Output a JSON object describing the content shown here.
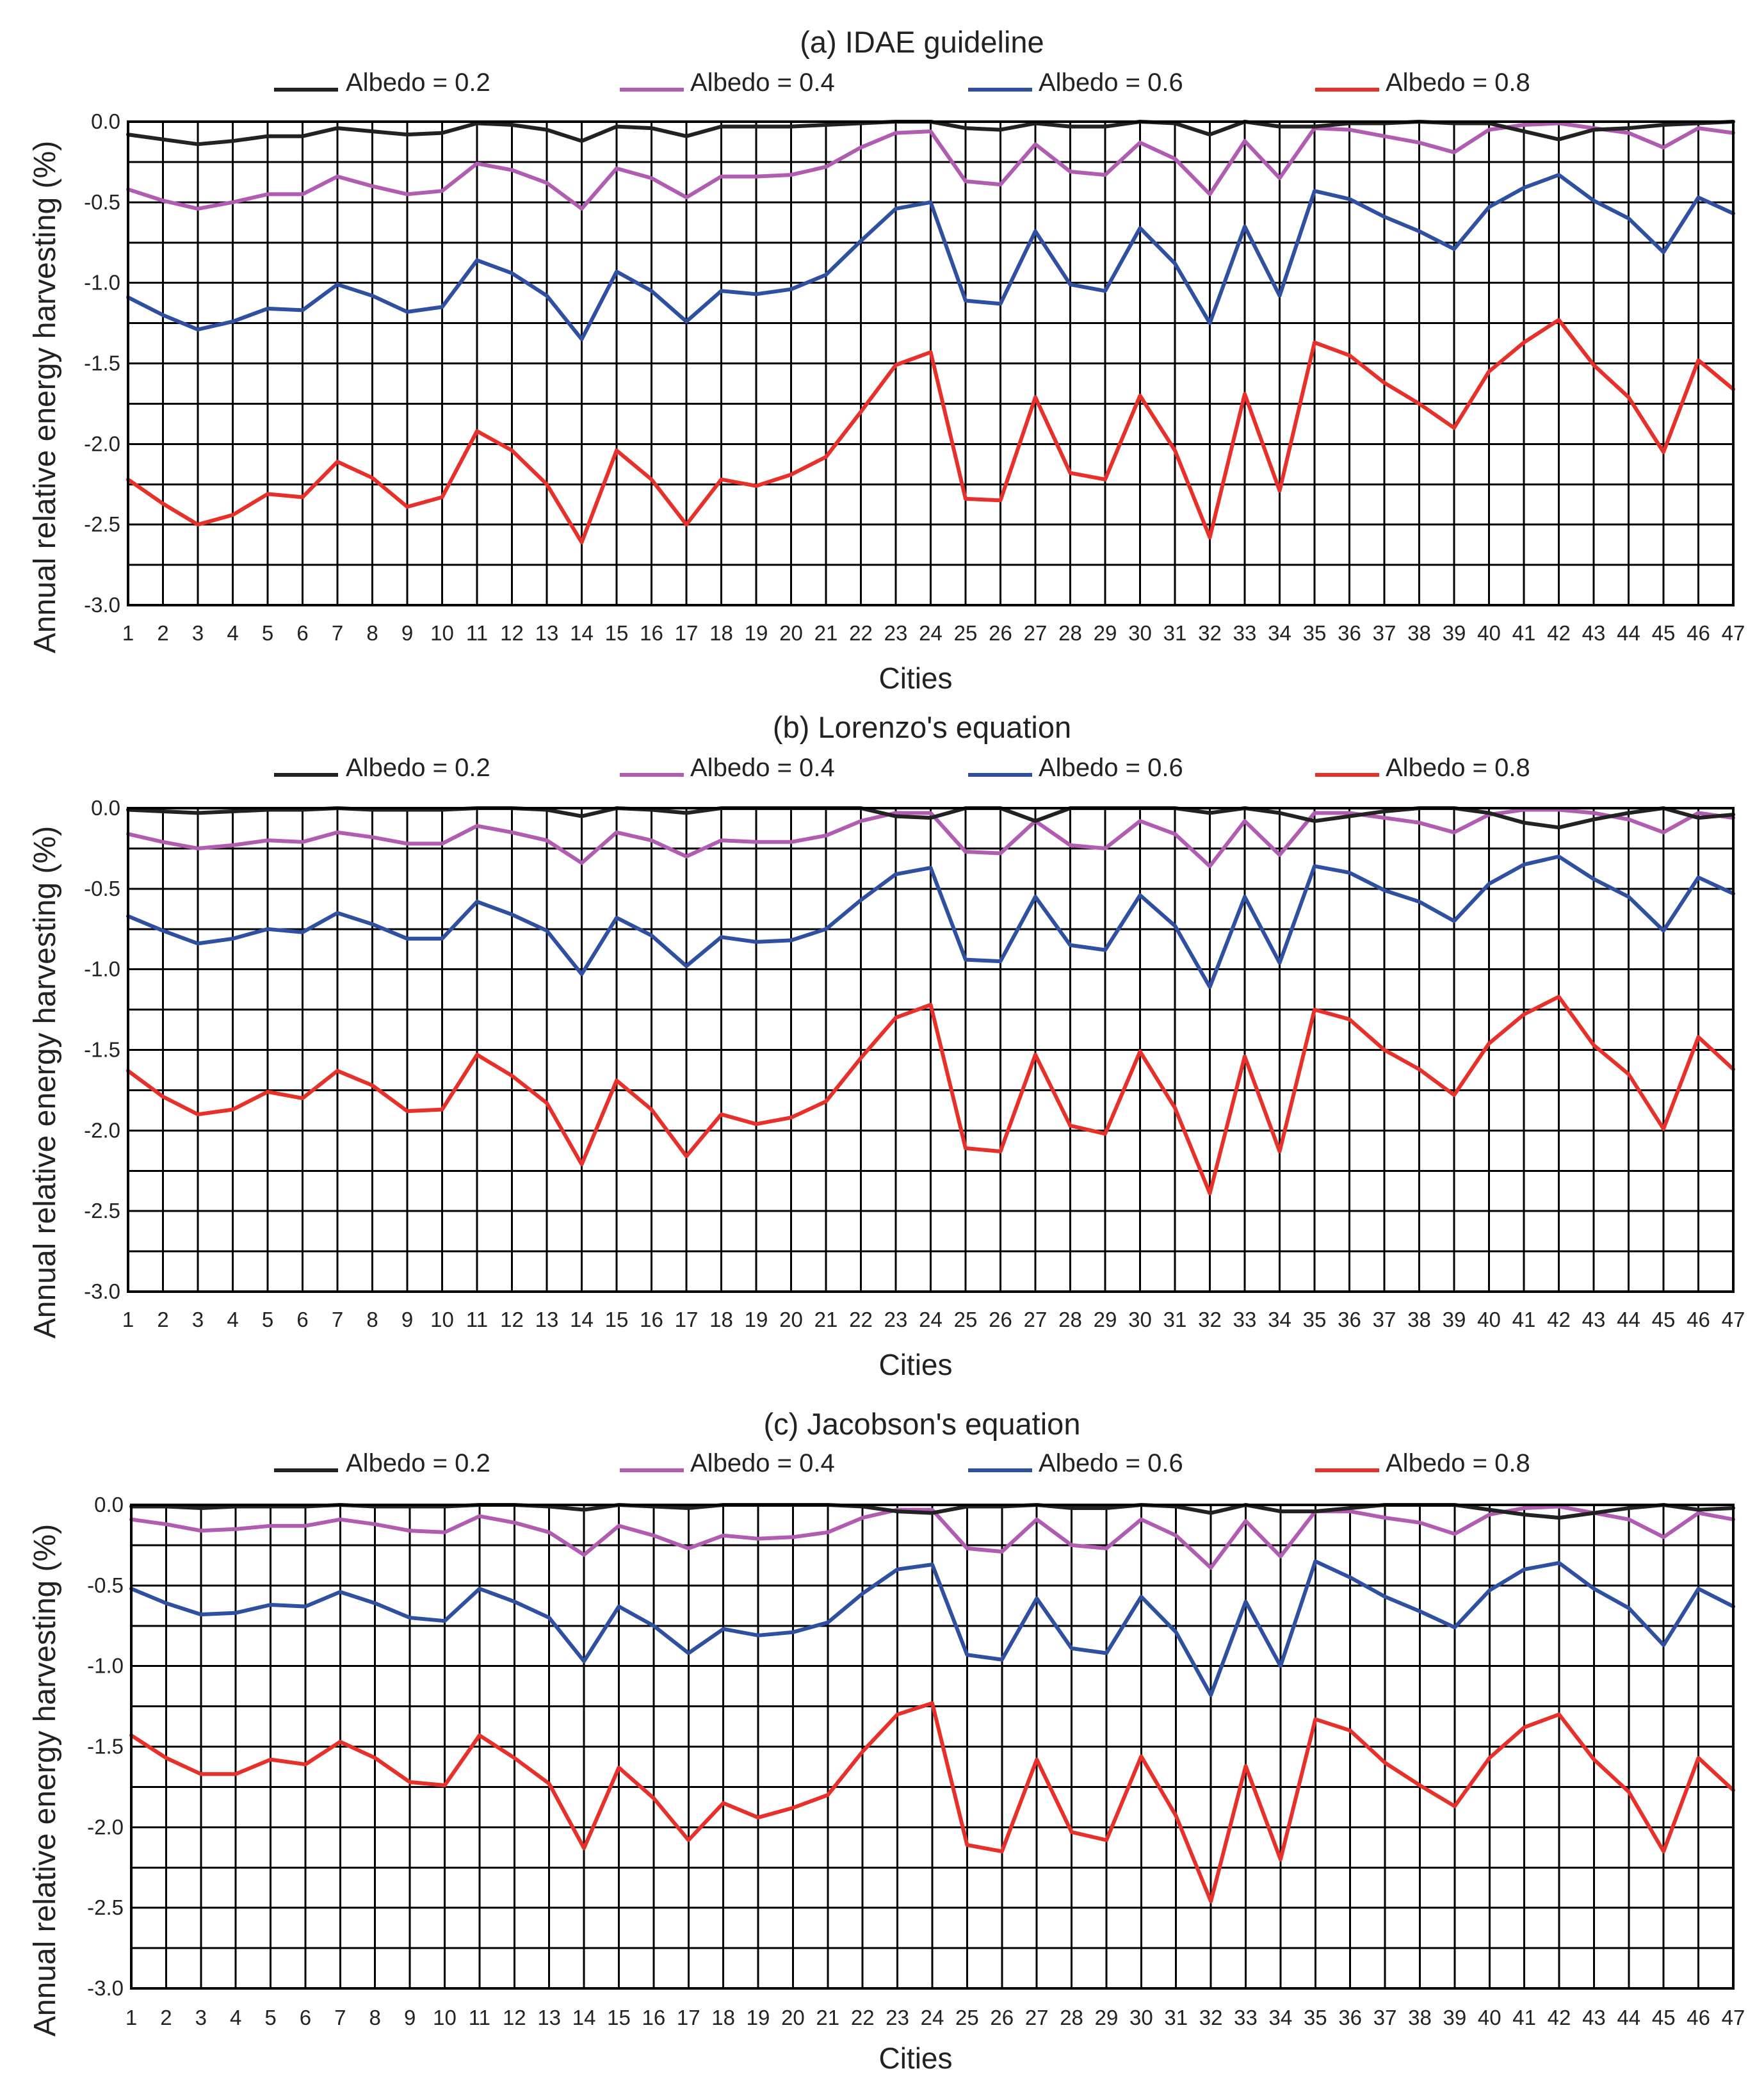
{
  "figure": {
    "ylabel": "Annual relative energy harvesting (%)",
    "xlabel": "Cities",
    "legend_labels": [
      "Albedo = 0.2",
      "Albedo = 0.4",
      "Albedo = 0.6",
      "Albedo = 0.8"
    ],
    "series_colors": [
      "#222222",
      "#b05cb0",
      "#2f4fa0",
      "#e8302a"
    ],
    "y_ticks": [
      "0.0",
      "-0.5",
      "-1.0",
      "-1.5",
      "-2.0",
      "-2.5",
      "-3.0"
    ],
    "x_ticks": [
      "1",
      "2",
      "3",
      "4",
      "5",
      "6",
      "7",
      "8",
      "9",
      "10",
      "11",
      "12",
      "13",
      "14",
      "15",
      "16",
      "17",
      "18",
      "19",
      "20",
      "21",
      "22",
      "23",
      "24",
      "25",
      "26",
      "27",
      "28",
      "29",
      "30",
      "31",
      "32",
      "33",
      "34",
      "35",
      "36",
      "37",
      "38",
      "39",
      "40",
      "41",
      "42",
      "43",
      "44",
      "45",
      "46",
      "47"
    ]
  },
  "chart_data": [
    {
      "type": "line",
      "title": "(a) IDAE guideline",
      "xlabel": "Cities",
      "ylabel": "Annual relative energy harvesting (%)",
      "ylim": [
        -3.0,
        0.0
      ],
      "x": [
        1,
        2,
        3,
        4,
        5,
        6,
        7,
        8,
        9,
        10,
        11,
        12,
        13,
        14,
        15,
        16,
        17,
        18,
        19,
        20,
        21,
        22,
        23,
        24,
        25,
        26,
        27,
        28,
        29,
        30,
        31,
        32,
        33,
        34,
        35,
        36,
        37,
        38,
        39,
        40,
        41,
        42,
        43,
        44,
        45,
        46,
        47
      ],
      "series": [
        {
          "name": "Albedo = 0.2",
          "values": [
            -0.08,
            -0.11,
            -0.14,
            -0.12,
            -0.09,
            -0.09,
            -0.04,
            -0.06,
            -0.08,
            -0.07,
            -0.01,
            -0.02,
            -0.05,
            -0.12,
            -0.03,
            -0.04,
            -0.09,
            -0.03,
            -0.03,
            -0.03,
            -0.02,
            -0.01,
            0.0,
            0.0,
            -0.04,
            -0.05,
            -0.01,
            -0.03,
            -0.03,
            0.0,
            -0.01,
            -0.08,
            0.0,
            -0.03,
            -0.03,
            -0.01,
            -0.01,
            0.0,
            -0.01,
            -0.01,
            -0.06,
            -0.11,
            -0.05,
            -0.04,
            -0.02,
            -0.01,
            0.0
          ]
        },
        {
          "name": "Albedo = 0.4",
          "values": [
            -0.42,
            -0.49,
            -0.54,
            -0.5,
            -0.45,
            -0.45,
            -0.34,
            -0.4,
            -0.45,
            -0.43,
            -0.26,
            -0.3,
            -0.38,
            -0.54,
            -0.29,
            -0.35,
            -0.47,
            -0.34,
            -0.34,
            -0.33,
            -0.28,
            -0.16,
            -0.07,
            -0.06,
            -0.37,
            -0.39,
            -0.14,
            -0.31,
            -0.33,
            -0.13,
            -0.23,
            -0.45,
            -0.12,
            -0.35,
            -0.04,
            -0.05,
            -0.09,
            -0.13,
            -0.19,
            -0.05,
            -0.02,
            -0.01,
            -0.04,
            -0.07,
            -0.16,
            -0.04,
            -0.07
          ]
        },
        {
          "name": "Albedo = 0.6",
          "values": [
            -1.09,
            -1.2,
            -1.29,
            -1.24,
            -1.16,
            -1.17,
            -1.01,
            -1.08,
            -1.18,
            -1.15,
            -0.86,
            -0.94,
            -1.08,
            -1.35,
            -0.93,
            -1.05,
            -1.24,
            -1.05,
            -1.07,
            -1.04,
            -0.95,
            -0.74,
            -0.54,
            -0.5,
            -1.11,
            -1.13,
            -0.68,
            -1.01,
            -1.05,
            -0.66,
            -0.88,
            -1.25,
            -0.65,
            -1.08,
            -0.43,
            -0.48,
            -0.59,
            -0.68,
            -0.79,
            -0.53,
            -0.41,
            -0.33,
            -0.49,
            -0.6,
            -0.81,
            -0.47,
            -0.57
          ]
        },
        {
          "name": "Albedo = 0.8",
          "values": [
            -2.22,
            -2.37,
            -2.5,
            -2.44,
            -2.31,
            -2.33,
            -2.11,
            -2.21,
            -2.39,
            -2.33,
            -1.92,
            -2.04,
            -2.25,
            -2.61,
            -2.04,
            -2.22,
            -2.5,
            -2.22,
            -2.26,
            -2.19,
            -2.08,
            -1.8,
            -1.51,
            -1.43,
            -2.34,
            -2.35,
            -1.71,
            -2.18,
            -2.22,
            -1.7,
            -2.04,
            -2.58,
            -1.69,
            -2.29,
            -1.37,
            -1.45,
            -1.62,
            -1.75,
            -1.9,
            -1.55,
            -1.37,
            -1.23,
            -1.51,
            -1.71,
            -2.05,
            -1.48,
            -1.66
          ]
        }
      ]
    },
    {
      "type": "line",
      "title": "(b) Lorenzo's equation",
      "xlabel": "Cities",
      "ylabel": "Annual relative energy harvesting (%)",
      "ylim": [
        -3.0,
        0.0
      ],
      "x": [
        1,
        2,
        3,
        4,
        5,
        6,
        7,
        8,
        9,
        10,
        11,
        12,
        13,
        14,
        15,
        16,
        17,
        18,
        19,
        20,
        21,
        22,
        23,
        24,
        25,
        26,
        27,
        28,
        29,
        30,
        31,
        32,
        33,
        34,
        35,
        36,
        37,
        38,
        39,
        40,
        41,
        42,
        43,
        44,
        45,
        46,
        47
      ],
      "series": [
        {
          "name": "Albedo = 0.2",
          "values": [
            -0.01,
            -0.02,
            -0.03,
            -0.02,
            -0.01,
            -0.01,
            0.0,
            -0.01,
            -0.01,
            -0.01,
            0.0,
            0.0,
            -0.01,
            -0.05,
            0.0,
            -0.01,
            -0.03,
            0.0,
            0.0,
            0.0,
            0.0,
            0.0,
            -0.05,
            -0.06,
            0.0,
            0.0,
            -0.08,
            0.0,
            0.0,
            0.0,
            0.0,
            -0.03,
            0.0,
            -0.03,
            -0.08,
            -0.05,
            -0.02,
            0.0,
            0.0,
            -0.03,
            -0.09,
            -0.12,
            -0.07,
            -0.03,
            0.0,
            -0.06,
            -0.04
          ]
        },
        {
          "name": "Albedo = 0.4",
          "values": [
            -0.16,
            -0.21,
            -0.25,
            -0.23,
            -0.2,
            -0.21,
            -0.15,
            -0.18,
            -0.22,
            -0.22,
            -0.11,
            -0.15,
            -0.2,
            -0.34,
            -0.15,
            -0.2,
            -0.3,
            -0.2,
            -0.21,
            -0.21,
            -0.17,
            -0.08,
            -0.03,
            -0.03,
            -0.27,
            -0.28,
            -0.08,
            -0.23,
            -0.25,
            -0.08,
            -0.16,
            -0.36,
            -0.08,
            -0.29,
            -0.03,
            -0.03,
            -0.06,
            -0.09,
            -0.15,
            -0.04,
            -0.01,
            -0.01,
            -0.03,
            -0.07,
            -0.15,
            -0.03,
            -0.06
          ]
        },
        {
          "name": "Albedo = 0.6",
          "values": [
            -0.67,
            -0.76,
            -0.84,
            -0.81,
            -0.75,
            -0.77,
            -0.65,
            -0.72,
            -0.81,
            -0.81,
            -0.58,
            -0.66,
            -0.76,
            -1.03,
            -0.68,
            -0.79,
            -0.98,
            -0.8,
            -0.83,
            -0.82,
            -0.75,
            -0.57,
            -0.41,
            -0.37,
            -0.94,
            -0.95,
            -0.55,
            -0.85,
            -0.88,
            -0.54,
            -0.73,
            -1.11,
            -0.55,
            -0.96,
            -0.36,
            -0.4,
            -0.51,
            -0.58,
            -0.7,
            -0.47,
            -0.35,
            -0.3,
            -0.44,
            -0.55,
            -0.76,
            -0.43,
            -0.53
          ]
        },
        {
          "name": "Albedo = 0.8",
          "values": [
            -1.63,
            -1.79,
            -1.9,
            -1.87,
            -1.76,
            -1.8,
            -1.63,
            -1.72,
            -1.88,
            -1.87,
            -1.53,
            -1.66,
            -1.83,
            -2.21,
            -1.69,
            -1.87,
            -2.16,
            -1.9,
            -1.96,
            -1.92,
            -1.82,
            -1.55,
            -1.3,
            -1.22,
            -2.11,
            -2.13,
            -1.53,
            -1.97,
            -2.02,
            -1.51,
            -1.86,
            -2.39,
            -1.54,
            -2.13,
            -1.25,
            -1.31,
            -1.5,
            -1.62,
            -1.78,
            -1.46,
            -1.28,
            -1.17,
            -1.47,
            -1.65,
            -1.99,
            -1.42,
            -1.62
          ]
        }
      ]
    },
    {
      "type": "line",
      "title": "(c) Jacobson's equation",
      "xlabel": "Cities",
      "ylabel": "Annual relative energy harvesting (%)",
      "ylim": [
        -3.0,
        0.0
      ],
      "x": [
        1,
        2,
        3,
        4,
        5,
        6,
        7,
        8,
        9,
        10,
        11,
        12,
        13,
        14,
        15,
        16,
        17,
        18,
        19,
        20,
        21,
        22,
        23,
        24,
        25,
        26,
        27,
        28,
        29,
        30,
        31,
        32,
        33,
        34,
        35,
        36,
        37,
        38,
        39,
        40,
        41,
        42,
        43,
        44,
        45,
        46,
        47
      ],
      "series": [
        {
          "name": "Albedo = 0.2",
          "values": [
            -0.01,
            -0.01,
            -0.02,
            -0.01,
            -0.01,
            -0.01,
            0.0,
            -0.01,
            -0.01,
            -0.01,
            0.0,
            0.0,
            -0.01,
            -0.03,
            0.0,
            -0.01,
            -0.02,
            0.0,
            0.0,
            0.0,
            0.0,
            -0.01,
            -0.04,
            -0.05,
            -0.01,
            -0.01,
            0.0,
            -0.02,
            -0.02,
            0.0,
            -0.01,
            -0.05,
            0.0,
            -0.04,
            -0.04,
            -0.02,
            0.0,
            0.0,
            0.0,
            -0.03,
            -0.06,
            -0.08,
            -0.05,
            -0.02,
            0.0,
            -0.03,
            -0.02
          ]
        },
        {
          "name": "Albedo = 0.4",
          "values": [
            -0.09,
            -0.12,
            -0.16,
            -0.15,
            -0.13,
            -0.13,
            -0.09,
            -0.12,
            -0.16,
            -0.17,
            -0.07,
            -0.11,
            -0.17,
            -0.31,
            -0.13,
            -0.19,
            -0.27,
            -0.19,
            -0.21,
            -0.2,
            -0.17,
            -0.08,
            -0.03,
            -0.03,
            -0.27,
            -0.29,
            -0.09,
            -0.25,
            -0.27,
            -0.09,
            -0.19,
            -0.39,
            -0.1,
            -0.32,
            -0.04,
            -0.04,
            -0.08,
            -0.11,
            -0.18,
            -0.06,
            -0.02,
            -0.01,
            -0.05,
            -0.09,
            -0.2,
            -0.05,
            -0.09
          ]
        },
        {
          "name": "Albedo = 0.6",
          "values": [
            -0.52,
            -0.61,
            -0.68,
            -0.67,
            -0.62,
            -0.63,
            -0.54,
            -0.61,
            -0.7,
            -0.72,
            -0.52,
            -0.6,
            -0.7,
            -0.97,
            -0.63,
            -0.75,
            -0.92,
            -0.77,
            -0.81,
            -0.79,
            -0.73,
            -0.55,
            -0.4,
            -0.37,
            -0.93,
            -0.96,
            -0.58,
            -0.89,
            -0.92,
            -0.57,
            -0.79,
            -1.18,
            -0.6,
            -1.0,
            -0.35,
            -0.45,
            -0.57,
            -0.66,
            -0.76,
            -0.53,
            -0.4,
            -0.36,
            -0.52,
            -0.64,
            -0.87,
            -0.52,
            -0.63
          ]
        },
        {
          "name": "Albedo = 0.8",
          "values": [
            -1.43,
            -1.57,
            -1.67,
            -1.67,
            -1.58,
            -1.61,
            -1.47,
            -1.57,
            -1.72,
            -1.74,
            -1.43,
            -1.57,
            -1.73,
            -2.13,
            -1.63,
            -1.82,
            -2.08,
            -1.85,
            -1.94,
            -1.88,
            -1.8,
            -1.53,
            -1.3,
            -1.23,
            -2.11,
            -2.15,
            -1.58,
            -2.03,
            -2.08,
            -1.56,
            -1.93,
            -2.46,
            -1.62,
            -2.2,
            -1.33,
            -1.4,
            -1.6,
            -1.74,
            -1.87,
            -1.57,
            -1.38,
            -1.3,
            -1.58,
            -1.78,
            -2.15,
            -1.57,
            -1.77
          ]
        }
      ]
    }
  ]
}
